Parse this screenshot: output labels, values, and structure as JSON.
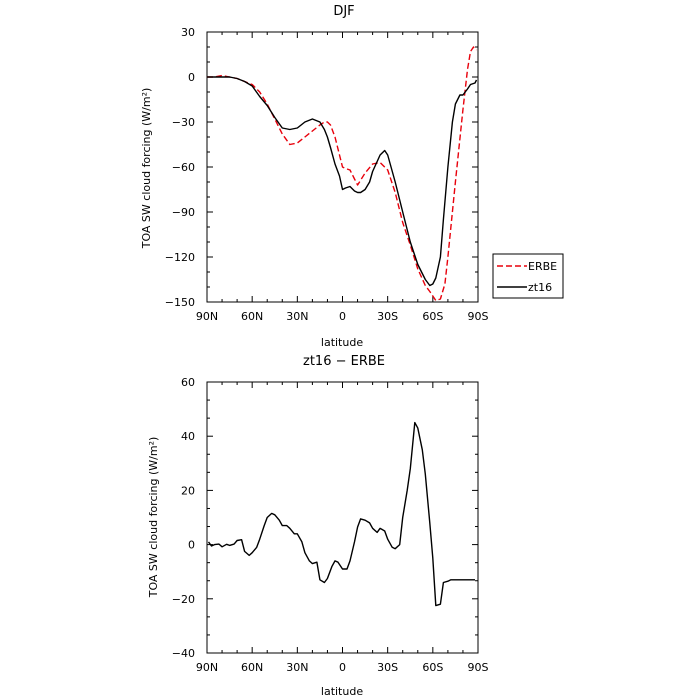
{
  "chart_data": [
    {
      "type": "line",
      "title": "DJF",
      "xlabel": "latitude",
      "ylabel": "TOA SW cloud forcing (W/m²)",
      "xlim": [
        90,
        -90
      ],
      "ylim": [
        -150,
        30
      ],
      "xticks": [
        90,
        60,
        30,
        0,
        -30,
        -60,
        -90
      ],
      "xtick_labels": [
        "90N",
        "60N",
        "30N",
        "0",
        "30S",
        "60S",
        "90S"
      ],
      "yticks": [
        30,
        0,
        -30,
        -60,
        -90,
        -120,
        -150
      ],
      "ytick_labels": [
        "30",
        "0",
        "−30",
        "−60",
        "−90",
        "−120",
        "−150"
      ],
      "legend": "right",
      "series": [
        {
          "name": "ERBE",
          "color": "#e8000b",
          "dash": "dashed",
          "x": [
            90,
            85,
            80,
            75,
            70,
            65,
            60,
            55,
            50,
            45,
            40,
            35,
            30,
            25,
            20,
            15,
            12,
            10,
            8,
            5,
            2,
            0,
            -2,
            -5,
            -8,
            -10,
            -15,
            -20,
            -25,
            -30,
            -35,
            -40,
            -45,
            -50,
            -55,
            -58,
            -60,
            -62,
            -65,
            -68,
            -70,
            -75,
            -80,
            -83,
            -85,
            -87,
            -89
          ],
          "y": [
            0,
            0,
            1,
            0,
            -1,
            -3,
            -5,
            -10,
            -18,
            -28,
            -38,
            -45,
            -44,
            -40,
            -36,
            -32,
            -30,
            -30,
            -32,
            -40,
            -52,
            -60,
            -61,
            -62,
            -68,
            -72,
            -64,
            -58,
            -57,
            -62,
            -77,
            -97,
            -112,
            -128,
            -139,
            -143,
            -146,
            -149,
            -148,
            -138,
            -120,
            -70,
            -22,
            5,
            17,
            20,
            18
          ]
        },
        {
          "name": "zt16",
          "color": "#000000",
          "dash": "solid",
          "x": [
            90,
            85,
            80,
            75,
            70,
            65,
            60,
            55,
            50,
            45,
            40,
            35,
            30,
            25,
            20,
            15,
            12,
            10,
            8,
            5,
            2,
            0,
            -2,
            -5,
            -8,
            -10,
            -12,
            -15,
            -18,
            -20,
            -25,
            -28,
            -30,
            -35,
            -40,
            -45,
            -50,
            -55,
            -58,
            -60,
            -62,
            -65,
            -67,
            -70,
            -73,
            -75,
            -78,
            -80,
            -83,
            -85,
            -88,
            -89
          ],
          "y": [
            0,
            0,
            0,
            0,
            -1,
            -3,
            -6,
            -13,
            -19,
            -27,
            -34,
            -35,
            -34,
            -30,
            -28,
            -30,
            -35,
            -40,
            -47,
            -58,
            -66,
            -75,
            -74,
            -73,
            -76,
            -77,
            -77,
            -75,
            -70,
            -63,
            -52,
            -49,
            -52,
            -70,
            -90,
            -110,
            -125,
            -135,
            -139,
            -138,
            -134,
            -120,
            -95,
            -60,
            -30,
            -18,
            -12,
            -12,
            -8,
            -5,
            -4,
            -2
          ]
        }
      ]
    },
    {
      "type": "line",
      "title": "zt16 − ERBE",
      "xlabel": "latitude",
      "ylabel": "TOA SW cloud forcing (W/m²)",
      "xlim": [
        90,
        -90
      ],
      "ylim": [
        -40,
        60
      ],
      "xticks": [
        90,
        60,
        30,
        0,
        -30,
        -60,
        -90
      ],
      "xtick_labels": [
        "90N",
        "60N",
        "30N",
        "0",
        "30S",
        "60S",
        "90S"
      ],
      "yticks": [
        60,
        40,
        20,
        0,
        -20,
        -40
      ],
      "ytick_labels": [
        "60",
        "40",
        "20",
        "0",
        "−20",
        "−40"
      ],
      "series": [
        {
          "name": "zt16 − ERBE",
          "color": "#000000",
          "dash": "solid",
          "x": [
            89,
            87,
            85,
            82,
            80,
            77,
            75,
            72,
            70,
            67,
            65,
            62,
            60,
            57,
            55,
            52,
            50,
            47,
            45,
            42,
            40,
            37,
            35,
            32,
            30,
            27,
            25,
            22,
            20,
            17,
            15,
            12,
            10,
            7,
            5,
            3,
            0,
            -3,
            -5,
            -8,
            -10,
            -12,
            -15,
            -18,
            -20,
            -23,
            -25,
            -28,
            -30,
            -33,
            -35,
            -38,
            -40,
            -43,
            -45,
            -48,
            -50,
            -53,
            -55,
            -58,
            -60,
            -62,
            -65,
            -67,
            -70,
            -72,
            -75,
            -78,
            -80,
            -82,
            -84,
            -86,
            -88
          ],
          "y": [
            1,
            -0.5,
            0,
            0.2,
            -0.8,
            0.1,
            -0.3,
            0.2,
            1.5,
            1.8,
            -2.5,
            -4,
            -3,
            -1,
            2,
            7,
            10,
            11.5,
            11,
            9,
            7,
            7,
            6,
            4,
            4,
            1,
            -3,
            -6,
            -7,
            -6.5,
            -13,
            -14,
            -12.5,
            -8,
            -6,
            -6.5,
            -9,
            -9,
            -6,
            1,
            6.5,
            9.5,
            9,
            8,
            6,
            4.5,
            6,
            5,
            2,
            -1,
            -1.5,
            0,
            10,
            20,
            28,
            45,
            43,
            35,
            26,
            8,
            -5,
            -22.5,
            -22,
            -14,
            -13.5,
            -13,
            -13,
            -13,
            -13,
            -13,
            -13,
            -13,
            -13
          ]
        }
      ]
    }
  ]
}
